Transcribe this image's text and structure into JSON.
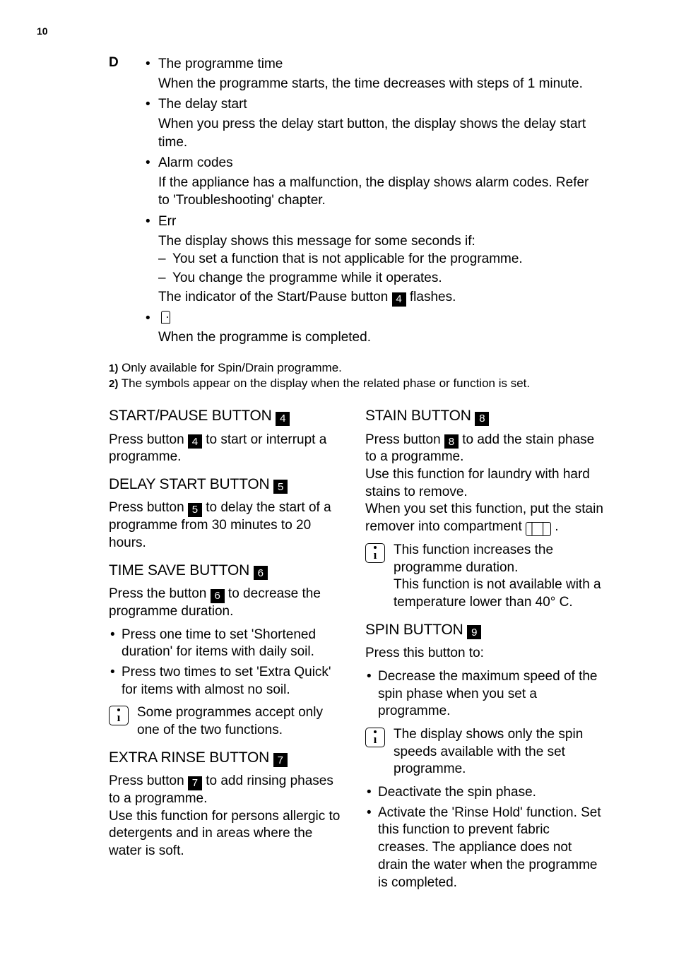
{
  "page_number": "10",
  "d_section": {
    "letter": "D",
    "items": [
      {
        "title": "The programme time",
        "desc": "When the programme starts, the time decreases with steps of 1 minute."
      },
      {
        "title": "The delay start",
        "desc": "When you press the delay start button, the display shows the delay start time."
      },
      {
        "title": "Alarm codes",
        "desc": "If the appliance has a malfunction, the display shows alarm codes. Refer to 'Troubleshooting' chapter."
      },
      {
        "title": "Err",
        "desc": "The display shows this message for some seconds if:",
        "sub": [
          "You set a function that is not applicable for the programme.",
          "You change the programme while it operates."
        ],
        "after_pre": "The indicator of the Start/Pause button ",
        "after_badge": "4",
        "after_post": " flashes."
      },
      {
        "icon_only": true,
        "desc": "When the programme is completed."
      }
    ]
  },
  "footnotes": [
    {
      "n": "1)",
      "t": "Only available for Spin/Drain programme."
    },
    {
      "n": "2)",
      "t": "The symbols appear on the display when the related phase or function is set."
    }
  ],
  "left": {
    "start_h_pre": "START/PAUSE BUTTON ",
    "start_h_badge": "4",
    "start_p_pre": "Press button ",
    "start_p_badge": "4",
    "start_p_post": " to start or interrupt a programme.",
    "delay_h_pre": "DELAY START BUTTON ",
    "delay_h_badge": "5",
    "delay_p_pre": "Press button ",
    "delay_p_badge": "5",
    "delay_p_post": " to delay the start of a programme from 30 minutes to 20 hours.",
    "time_h_pre": "TIME SAVE BUTTON ",
    "time_h_badge": "6",
    "time_p_pre": "Press the button ",
    "time_p_badge": "6",
    "time_p_post": " to decrease the programme duration.",
    "time_li1": "Press one time to set 'Shortened duration' for items with daily soil.",
    "time_li2": "Press two times to set 'Extra Quick' for items with almost no soil.",
    "time_info": "Some programmes accept only one of the two functions.",
    "rinse_h_pre": "EXTRA RINSE BUTTON ",
    "rinse_h_badge": "7",
    "rinse_p_pre": "Press button ",
    "rinse_p_badge": "7",
    "rinse_p_post": " to add rinsing phases to a programme.",
    "rinse_p2": "Use this function for persons allergic to detergents and in areas where the water is soft."
  },
  "right": {
    "stain_h_pre": "STAIN BUTTON ",
    "stain_h_badge": "8",
    "stain_p1_pre": "Press button ",
    "stain_p1_badge": "8",
    "stain_p1_post": " to add the stain phase to a programme.",
    "stain_p2": "Use this function for laundry with hard stains to remove.",
    "stain_p3_pre": "When you set this function, put the stain remover into compartment ",
    "stain_p3_post": " .",
    "stain_info": "This function increases the programme duration.\nThis function is not available with a temperature lower than 40° C.",
    "spin_h_pre": "SPIN BUTTON ",
    "spin_h_badge": "9",
    "spin_p1": "Press this button to:",
    "spin_li1": "Decrease the maximum speed of the spin phase when you set a programme.",
    "spin_info": "The display shows only the spin speeds available with the set programme.",
    "spin_li2": "Deactivate the spin phase.",
    "spin_li3": "Activate the 'Rinse Hold' function. Set this function to prevent fabric creases. The appliance does not drain the water when the programme is completed."
  }
}
